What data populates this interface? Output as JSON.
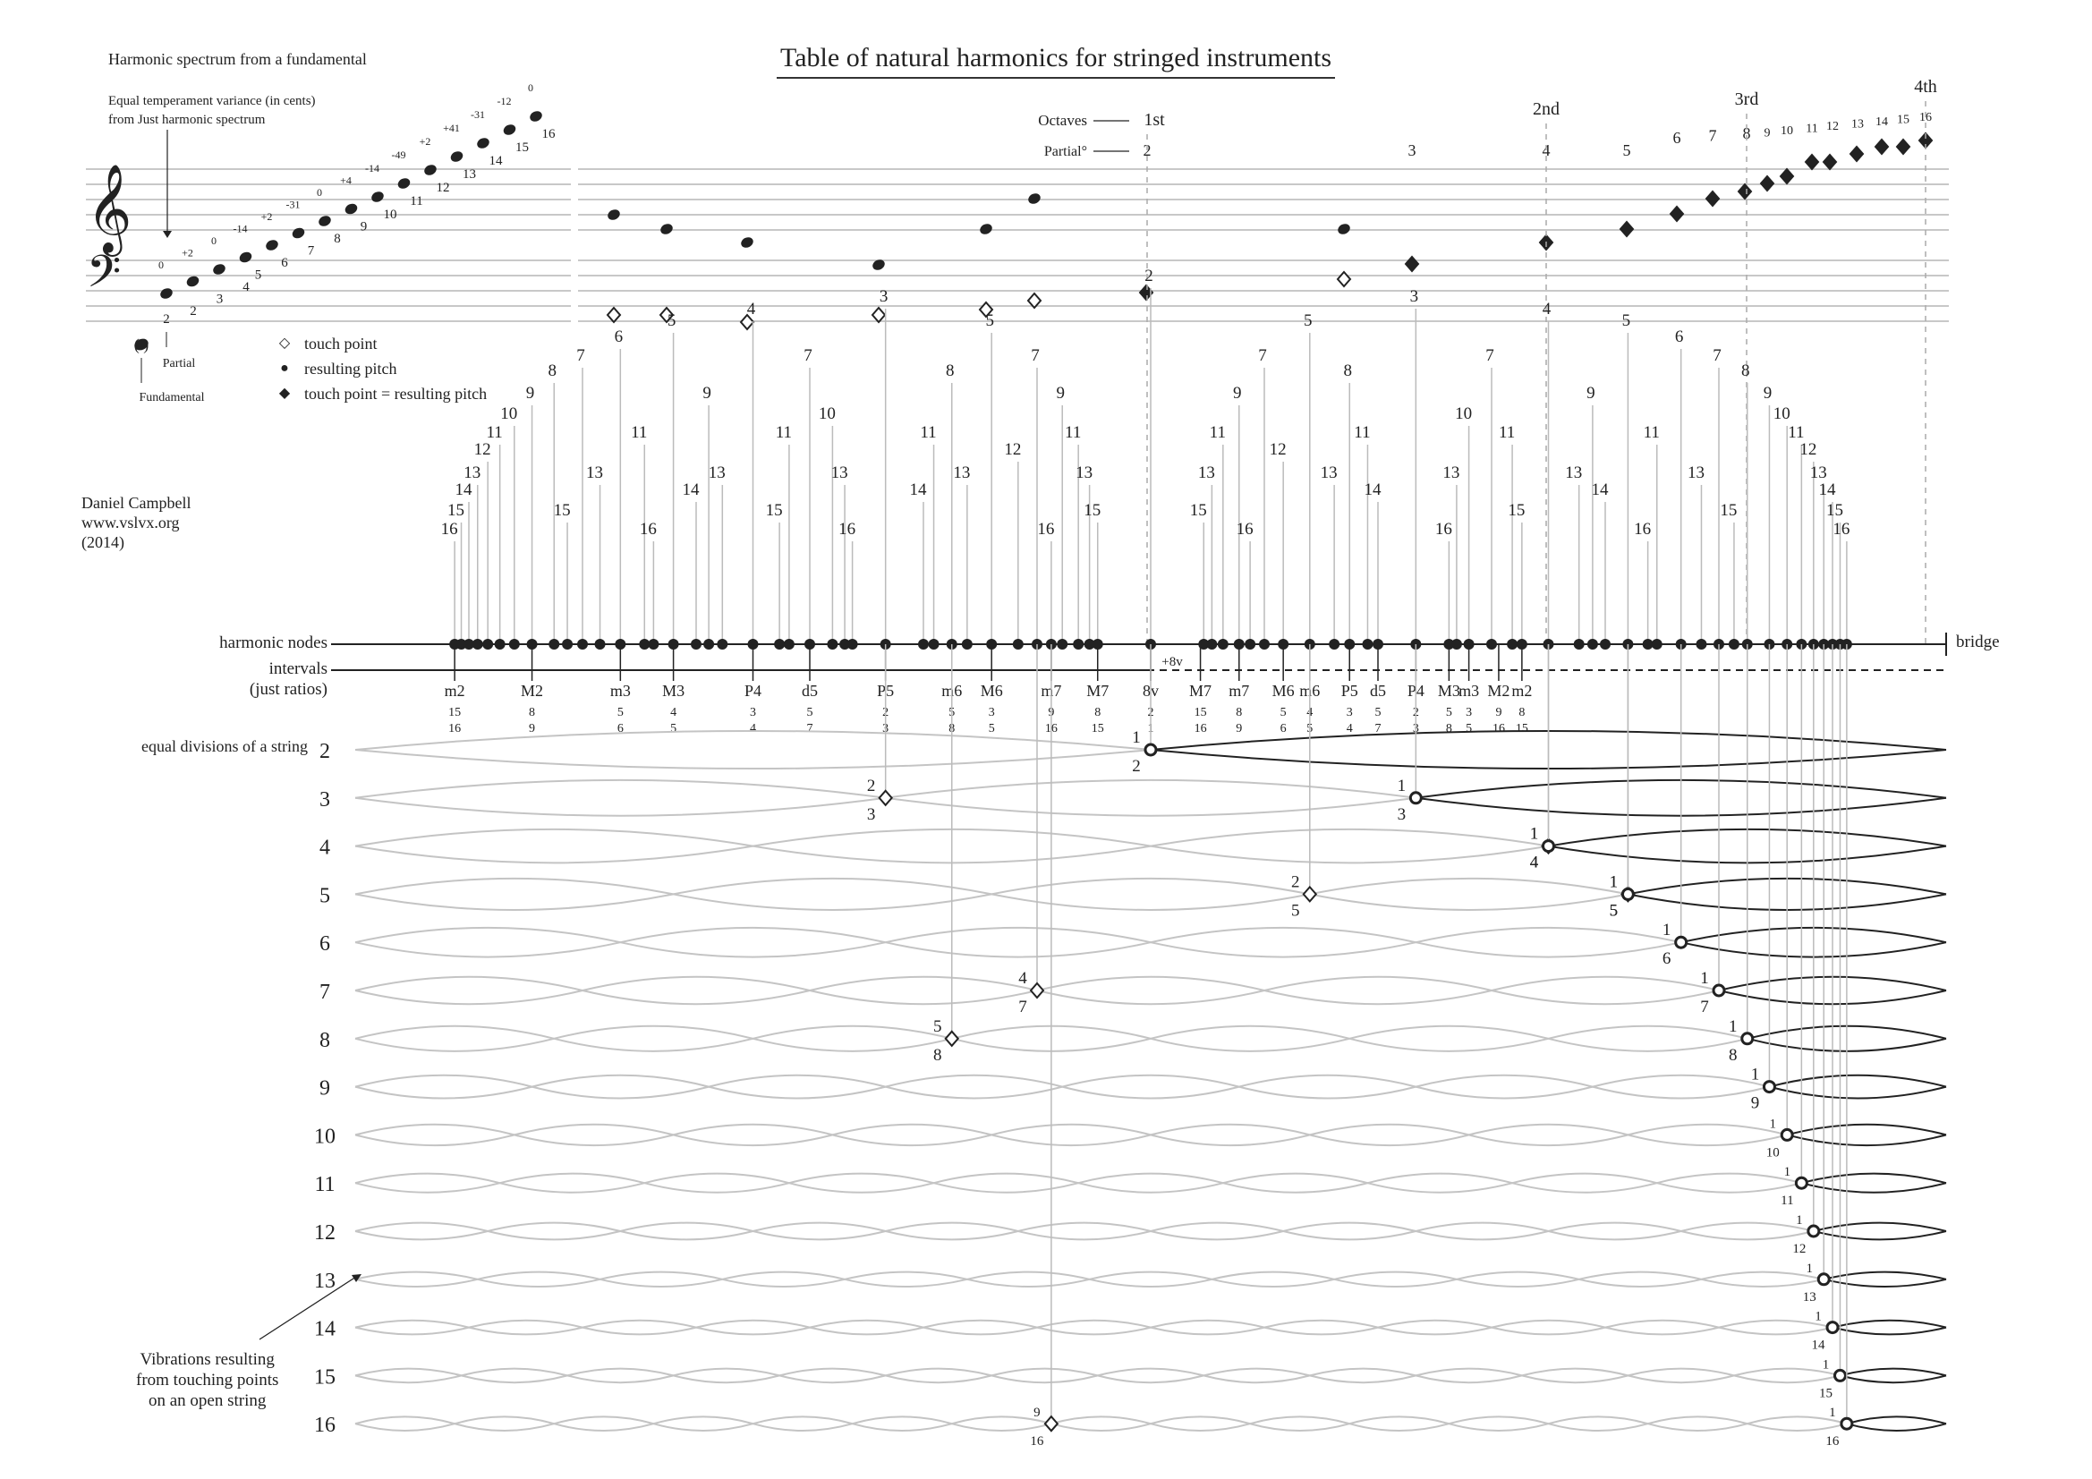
{
  "title": "Table of natural harmonics for stringed instruments",
  "spectrum": {
    "title": "Harmonic spectrum from a fundamental",
    "et_label_line1": "Equal temperament variance (in cents)",
    "et_label_line2": "from Just harmonic spectrum",
    "partials": [
      2,
      3,
      4,
      5,
      6,
      7,
      8,
      9,
      10,
      11,
      12,
      13,
      14,
      15,
      16
    ],
    "cents": [
      "0",
      "+2",
      "0",
      "-14",
      "+2",
      "-31",
      "0",
      "+4",
      "-14",
      "-49",
      "+2",
      "+41",
      "-31",
      "-12",
      "0"
    ],
    "fundamental_label": "Fundamental",
    "partial_label": "Partial"
  },
  "legend": {
    "touch_point": "touch point",
    "resulting_pitch": "resulting pitch",
    "touch_equals_pitch": "touch point = resulting pitch"
  },
  "credits": {
    "author": "Daniel Campbell",
    "website": "www.vslvx.org",
    "year": "(2014)"
  },
  "octaves": {
    "octaves_label": "Octaves",
    "partial_label": "Partial°",
    "markers": [
      {
        "label": "1st",
        "partial": 2
      },
      {
        "label": "2nd",
        "partial": 4
      },
      {
        "label": "3rd",
        "partial": 8
      },
      {
        "label": "4th",
        "partial": 16
      }
    ],
    "top_partials": [
      2,
      3,
      4,
      5,
      6,
      7,
      8,
      9,
      10,
      11,
      12,
      13,
      14,
      15,
      16
    ]
  },
  "rows": {
    "harmonic_nodes": "harmonic nodes",
    "intervals": "intervals",
    "just_ratios": "(just ratios)",
    "bridge": "bridge",
    "octave_mark": "+8v",
    "equal_divisions": "equal divisions of a string",
    "vibrations_note_1": "Vibrations resulting",
    "vibrations_note_2": "from touching points",
    "vibrations_note_3": "on an open string"
  },
  "intervals": [
    {
      "name": "m2",
      "num": 15,
      "den": 16
    },
    {
      "name": "M2",
      "num": 8,
      "den": 9
    },
    {
      "name": "m3",
      "num": 5,
      "den": 6
    },
    {
      "name": "M3",
      "num": 4,
      "den": 5
    },
    {
      "name": "P4",
      "num": 3,
      "den": 4
    },
    {
      "name": "d5",
      "num": 5,
      "den": 7
    },
    {
      "name": "P5",
      "num": 2,
      "den": 3
    },
    {
      "name": "m6",
      "num": 5,
      "den": 8
    },
    {
      "name": "M6",
      "num": 3,
      "den": 5
    },
    {
      "name": "m7",
      "num": 9,
      "den": 16
    },
    {
      "name": "M7",
      "num": 8,
      "den": 15
    },
    {
      "name": "8v",
      "num": 2,
      "den": 1
    },
    {
      "name": "m2",
      "num": 8,
      "den": 15
    },
    {
      "name": "M2",
      "num": 9,
      "den": 16
    },
    {
      "name": "m3",
      "num": 3,
      "den": 5
    },
    {
      "name": "M3",
      "num": 5,
      "den": 8
    },
    {
      "name": "P4",
      "num": 2,
      "den": 3
    },
    {
      "name": "d5",
      "num": 5,
      "den": 7
    },
    {
      "name": "P5",
      "num": 3,
      "den": 4
    },
    {
      "name": "m6",
      "num": 4,
      "den": 5
    },
    {
      "name": "M6",
      "num": 5,
      "den": 6
    },
    {
      "name": "m7",
      "num": 8,
      "den": 9
    },
    {
      "name": "M7",
      "num": 15,
      "den": 16
    }
  ],
  "divisions": [
    2,
    3,
    4,
    5,
    6,
    7,
    8,
    9,
    10,
    11,
    12,
    13,
    14,
    15,
    16
  ],
  "touch_points": [
    {
      "row": 2,
      "num": 1,
      "den": 2,
      "type": "circle"
    },
    {
      "row": 3,
      "num": 2,
      "den": 3,
      "type": "diamond"
    },
    {
      "row": 3,
      "num": 1,
      "den": 3,
      "type": "circle"
    },
    {
      "row": 4,
      "num": 1,
      "den": 4,
      "type": "diamond"
    },
    {
      "row": 4,
      "num": 1,
      "den": 4,
      "type": "circle"
    },
    {
      "row": 5,
      "num": 1,
      "den": 5,
      "type": "diamond"
    },
    {
      "row": 5,
      "num": 2,
      "den": 5,
      "type": "diamond"
    },
    {
      "row": 5,
      "num": 1,
      "den": 5,
      "type": "circle"
    },
    {
      "row": 6,
      "num": 1,
      "den": 6,
      "type": "circle"
    },
    {
      "row": 7,
      "num": 4,
      "den": 7,
      "type": "diamond",
      "flat": true
    },
    {
      "row": 7,
      "num": 1,
      "den": 7,
      "type": "circle"
    },
    {
      "row": 8,
      "num": 5,
      "den": 8,
      "type": "diamond"
    },
    {
      "row": 8,
      "num": 1,
      "den": 8,
      "type": "circle"
    },
    {
      "row": 9,
      "num": 1,
      "den": 9,
      "type": "circle"
    },
    {
      "row": 10,
      "num": 1,
      "den": 10,
      "type": "circle"
    },
    {
      "row": 11,
      "num": 1,
      "den": 11,
      "type": "circle"
    },
    {
      "row": 12,
      "num": 1,
      "den": 12,
      "type": "circle"
    },
    {
      "row": 13,
      "num": 1,
      "den": 13,
      "type": "circle"
    },
    {
      "row": 14,
      "num": 1,
      "den": 14,
      "type": "circle"
    },
    {
      "row": 15,
      "num": 1,
      "den": 15,
      "type": "circle"
    },
    {
      "row": 16,
      "num": 9,
      "den": 16,
      "type": "diamond"
    },
    {
      "row": 16,
      "num": 1,
      "den": 16,
      "type": "circle"
    }
  ],
  "colors": {
    "ink": "#222222",
    "staff_line": "#c8c8c8",
    "ghost_wave": "#c4c4c4",
    "dashed_guide": "#aaaaaa"
  }
}
